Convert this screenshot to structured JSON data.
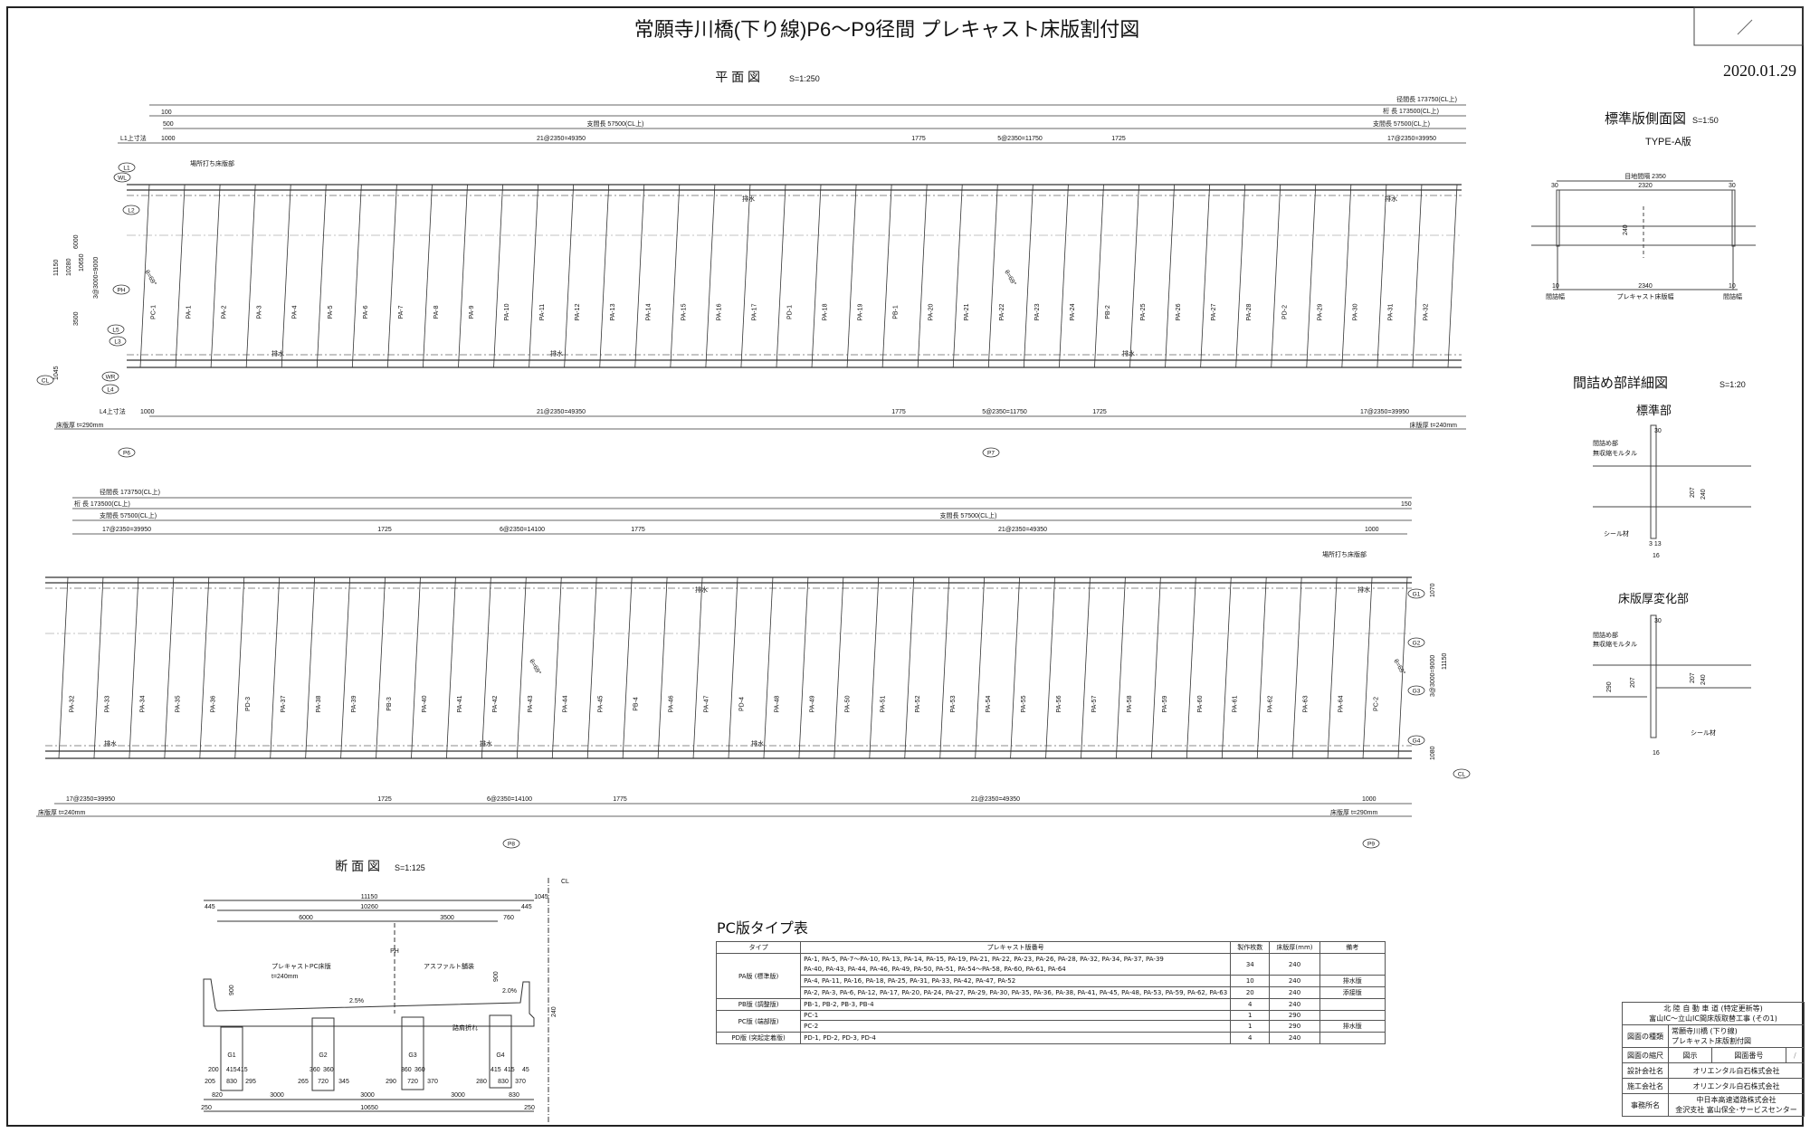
{
  "title": "常願寺川橋(下り線)P6～P9径間 プレキャスト床版割付図",
  "date": "2020.01.29",
  "plan": {
    "title": "平 面 図",
    "scale": "S=1:250",
    "dims_top": {
      "span_length": "径間長 173750(CL上)",
      "girder_length": "桁 長 173500(CL上)",
      "support_length": "支間長 57500(CL上)",
      "support_length_b": "支間長 57500(CL上)",
      "d100": "100",
      "d500": "500",
      "d1000": "1000",
      "l1_label": "L1上寸法",
      "seg1": "21@2350=49350",
      "seg2": "1775",
      "seg3": "5@2350=11750",
      "seg4": "1725",
      "seg5": "17@2350=39950"
    },
    "dims_bottom": {
      "l4_label": "L4上寸法",
      "d1000": "1000",
      "seg1": "21@2350=49350",
      "seg2": "1775",
      "seg3": "5@2350=11750",
      "seg4": "1725",
      "seg5": "17@2350=39950",
      "thick_left": "床版厚 t=290mm",
      "thick_right": "床版厚 t=240mm"
    },
    "cast_in_place": "場所打ち床版部",
    "drain": "排水",
    "left_dims": [
      "11150",
      "10280",
      "10650",
      "6000",
      "3500",
      "445",
      "820",
      "760",
      "445",
      "1045",
      "250",
      "250",
      "3@3000=9000"
    ],
    "markers": [
      "L1",
      "WL",
      "L2",
      "PH",
      "L5",
      "L3",
      "WR",
      "L4",
      "CL"
    ],
    "piers": [
      "P6",
      "P7"
    ],
    "skew": "θ=69°",
    "slabs": [
      "PC-1",
      "PA-1",
      "PA-2",
      "PA-3",
      "PA-4",
      "PA-5",
      "PA-6",
      "PA-7",
      "PA-8",
      "PA-9",
      "PA-10",
      "PA-11",
      "PA-12",
      "PA-13",
      "PA-14",
      "PA-15",
      "PA-16",
      "PA-17",
      "PD-1",
      "PA-18",
      "PA-19",
      "PB-1",
      "PA-20",
      "PA-21",
      "PA-22",
      "PA-23",
      "PA-24",
      "PB-2",
      "PA-25",
      "PA-26",
      "PA-27",
      "PA-28",
      "PD-2",
      "PA-29",
      "PA-30",
      "PA-31",
      "PA-32"
    ]
  },
  "plan2": {
    "dims_top": {
      "span_length": "径間長 173750(CL上)",
      "girder_length": "桁 長 173500(CL上)",
      "support_length": "支間長 57500(CL上)",
      "support_length_b": "支間長 57500(CL上)",
      "seg1": "17@2350=39950",
      "seg2": "1725",
      "seg3": "6@2350=14100",
      "seg4": "1775",
      "seg5": "21@2350=49350",
      "d1000": "1000",
      "d150": "150"
    },
    "dims_bottom": {
      "seg1": "17@2350=39950",
      "seg2": "1725",
      "seg3": "6@2350=14100",
      "seg4": "1775",
      "seg5": "21@2350=49350",
      "d1000": "1000",
      "thick_left": "床版厚 t=240mm",
      "thick_right": "床版厚 t=290mm"
    },
    "cast_in_place": "場所打ち床版部",
    "drain": "排水",
    "right_dims": [
      "1070",
      "11150",
      "3@3000=9000",
      "1080"
    ],
    "markers": [
      "G1",
      "G2",
      "G3",
      "G4",
      "CL"
    ],
    "piers": [
      "P8",
      "P9"
    ],
    "skew": "θ=69°",
    "slabs": [
      "PA-32",
      "PA-33",
      "PA-34",
      "PA-35",
      "PA-36",
      "PD-3",
      "PA-37",
      "PA-38",
      "PA-39",
      "PB-3",
      "PA-40",
      "PA-41",
      "PA-42",
      "PA-43",
      "PA-44",
      "PA-45",
      "PB-4",
      "PA-46",
      "PA-47",
      "PD-4",
      "PA-48",
      "PA-49",
      "PA-50",
      "PA-51",
      "PA-52",
      "PA-53",
      "PA-54",
      "PA-55",
      "PA-56",
      "PA-57",
      "PA-58",
      "PA-59",
      "PA-60",
      "PA-61",
      "PA-62",
      "PA-63",
      "PA-64",
      "PC-2"
    ]
  },
  "side_view": {
    "title": "標準版側面図",
    "scale": "S=1:50",
    "type": "TYPE-A版",
    "joint_spacing": "目地間隔 2350",
    "d30a": "30",
    "d2320": "2320",
    "d30b": "30",
    "d240": "240",
    "d10a": "10",
    "d2340": "2340",
    "d10b": "10",
    "gap_width_a": "間詰幅",
    "slab_width": "プレキャスト床版幅",
    "gap_width_b": "間詰幅"
  },
  "joint_detail": {
    "title": "間詰め部詳細図",
    "scale": "S=1:20",
    "standard": {
      "title": "標準部",
      "label1": "間詰め部",
      "label2": "無収縮モルタル",
      "seal": "シール材",
      "d30": "30",
      "d207": "207",
      "d240": "240",
      "d16": "16",
      "d3": "3 13"
    },
    "change": {
      "title": "床版厚変化部",
      "label1": "間詰め部",
      "label2": "無収縮モルタル",
      "seal": "シール材",
      "d30": "30",
      "d290": "290",
      "d207": "207",
      "d240": "240",
      "d16": "16"
    }
  },
  "section": {
    "title": "断 面 図",
    "scale": "S=1:125",
    "labels": {
      "precast": "プレキャストPC床版",
      "thickness": "t=240mm",
      "asphalt": "アスファルト舗装",
      "shoulder": "路肩折れ",
      "slope1": "2.5%",
      "slope2": "2.0%",
      "ph": "PH",
      "cl": "CL"
    },
    "top_dims": {
      "total": "11150",
      "right": "1045",
      "l445": "445",
      "mid": "10260",
      "r445": "445",
      "d6000": "6000",
      "d3500": "3500",
      "d760": "760",
      "h900a": "900",
      "h900b": "900",
      "d240": "240"
    },
    "girders": [
      "G1",
      "G2",
      "G3",
      "G4"
    ],
    "bottom_row1": [
      "200",
      "415",
      "415",
      "360",
      "360",
      "360",
      "360",
      "415",
      "415",
      "45"
    ],
    "bottom_row2": [
      "205",
      "830",
      "295",
      "265",
      "720",
      "345",
      "290",
      "720",
      "370",
      "280",
      "830",
      "370"
    ],
    "bottom_row3": [
      "820",
      "3000",
      "3000",
      "3000",
      "830"
    ],
    "bottom_row4": [
      "250",
      "10650",
      "250"
    ]
  },
  "pc_table": {
    "title": "PC版タイプ表",
    "headers": [
      "タイプ",
      "プレキャスト版番号",
      "製作枚数",
      "床版厚(mm)",
      "備考"
    ],
    "rows": [
      {
        "type": "PA版 (標準版)",
        "numbers": "PA-1, PA-5, PA-7～PA-10, PA-13, PA-14, PA-15, PA-19, PA-21, PA-22, PA-23, PA-26, PA-28, PA-32, PA-34, PA-37, PA-39",
        "numbers2": "PA-40, PA-43, PA-44, PA-46, PA-49, PA-50, PA-51, PA-54～PA-58, PA-60, PA-61, PA-64",
        "count": "34",
        "thickness": "240",
        "note": ""
      },
      {
        "type": "",
        "numbers": "PA-4, PA-11, PA-16, PA-18, PA-25, PA-31, PA-33, PA-42, PA-47, PA-52",
        "count": "10",
        "thickness": "240",
        "note": "排水版"
      },
      {
        "type": "",
        "numbers": "PA-2, PA-3, PA-6, PA-12, PA-17, PA-20, PA-24, PA-27, PA-29, PA-30, PA-35, PA-36, PA-38, PA-41, PA-45, PA-48, PA-53, PA-59, PA-62, PA-63",
        "count": "20",
        "thickness": "240",
        "note": "添接版"
      },
      {
        "type": "PB版 (調整版)",
        "numbers": "PB-1, PB-2, PB-3, PB-4",
        "count": "4",
        "thickness": "240",
        "note": ""
      },
      {
        "type": "PC版 (端部版)",
        "numbers": "PC-1",
        "count": "1",
        "thickness": "290",
        "note": ""
      },
      {
        "type": "",
        "numbers": "PC-2",
        "count": "1",
        "thickness": "290",
        "note": "排水版"
      },
      {
        "type": "PD版 (突起定着版)",
        "numbers": "PD-1, PD-2, PD-3, PD-4",
        "count": "4",
        "thickness": "240",
        "note": ""
      }
    ]
  },
  "title_block": {
    "project1": "北 陸 自 動 車 道 (特定更新等)",
    "project2": "富山IC～立山IC間床版取替工事 (その1)",
    "drawing_type_label": "図面の種類",
    "drawing_type1": "常願寺川橋 (下り線)",
    "drawing_type2": "プレキャスト床版割付図",
    "scale_label": "図面の縮尺",
    "scale_value": "図示",
    "number_label": "図面番号",
    "number_value": "/",
    "designer_label": "設計会社名",
    "designer": "オリエンタル白石株式会社",
    "builder_label": "施工会社名",
    "builder": "オリエンタル白石株式会社",
    "office_label": "事務所名",
    "office1": "中日本高速道路株式会社",
    "office2": "金沢支社 富山保全･サービスセンター"
  }
}
